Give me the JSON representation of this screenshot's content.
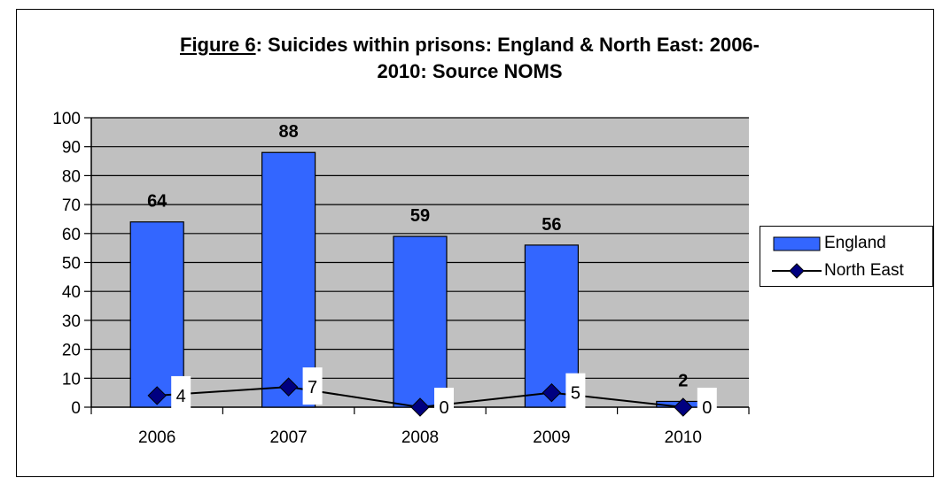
{
  "title": {
    "figure_label": "Figure 6",
    "text": ": Suicides within prisons: England & North East: 2006-",
    "line2": "2010: Source NOMS"
  },
  "colors": {
    "bar_fill": "#3366ff",
    "line_color": "#000000",
    "marker_fill": "#000080",
    "plot_bg": "#c0c0c0"
  },
  "chart_data": {
    "type": "bar",
    "categories": [
      "2006",
      "2007",
      "2008",
      "2009",
      "2010"
    ],
    "series": [
      {
        "name": "England",
        "type": "bar",
        "values": [
          64,
          88,
          59,
          56,
          2
        ]
      },
      {
        "name": "North East",
        "type": "line",
        "values": [
          4,
          7,
          0,
          5,
          0
        ]
      }
    ],
    "ylim": [
      0,
      100
    ],
    "yticks": [
      "0",
      "10",
      "20",
      "30",
      "40",
      "50",
      "60",
      "70",
      "80",
      "90",
      "100"
    ],
    "grid": true,
    "legend": "right"
  }
}
